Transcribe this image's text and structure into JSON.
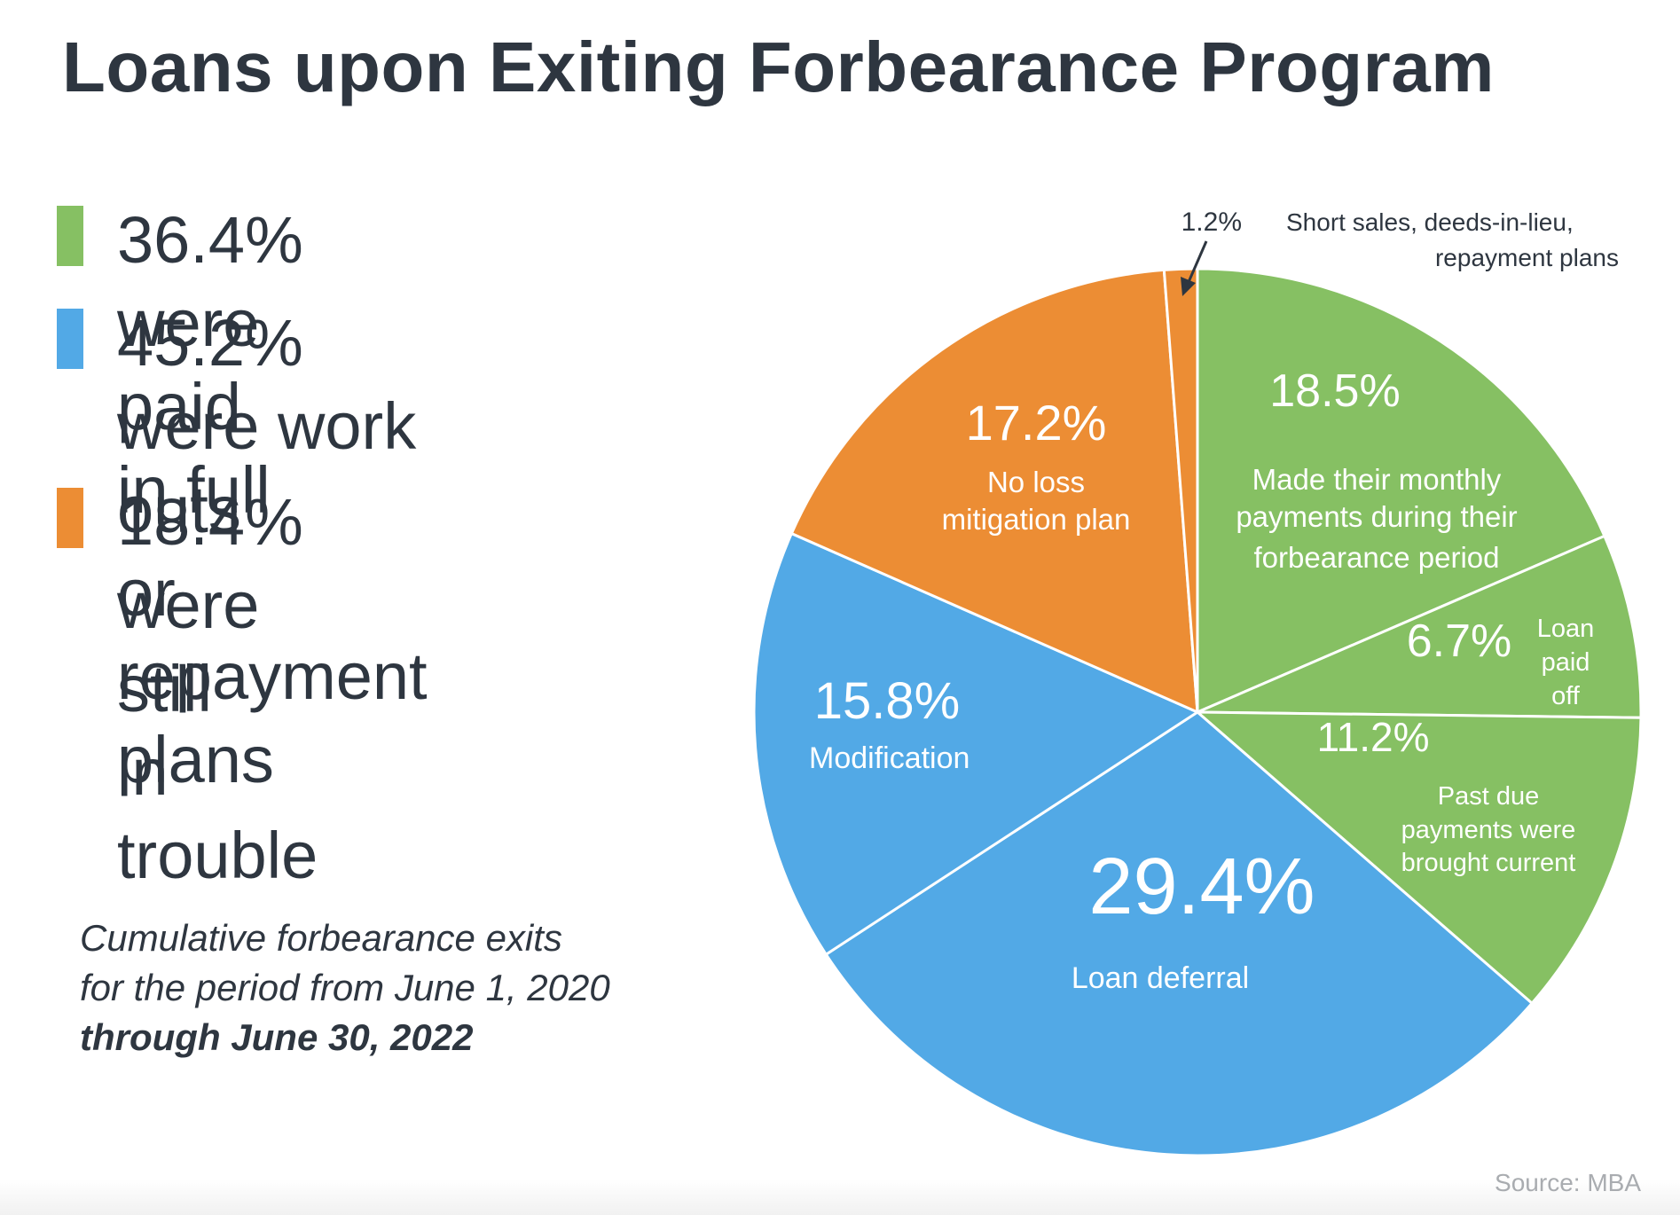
{
  "title": "Loans upon Exiting Forbearance Program",
  "legend": [
    {
      "text": "36.4% were paid in full",
      "color": "#86c063"
    },
    {
      "text": "45.2% were work outs\nor repayment plans",
      "color": "#52a9e6"
    },
    {
      "text": "18.4% were still\n in trouble",
      "color": "#ec8d34"
    }
  ],
  "note": {
    "line1": "Cumulative forbearance exits",
    "line2": "for the period from June 1, 2020",
    "line3": "through June 30, 2022"
  },
  "source": "Source: MBA",
  "chart_data": {
    "type": "pie",
    "title": "Loans upon Exiting Forbearance Program",
    "slices": [
      {
        "value": 18.5,
        "percent_label": "18.5%",
        "description": [
          "Made their monthly",
          "payments during their",
          "forbearance period"
        ],
        "color": "#86c063",
        "group": "paid in full"
      },
      {
        "value": 6.7,
        "percent_label": "6.7%",
        "description": [
          "Loan",
          "paid",
          "off"
        ],
        "color": "#86c063",
        "group": "paid in full"
      },
      {
        "value": 11.2,
        "percent_label": "11.2%",
        "description": [
          "Past due",
          "payments were",
          "brought current"
        ],
        "color": "#86c063",
        "group": "paid in full"
      },
      {
        "value": 29.4,
        "percent_label": "29.4%",
        "description": [
          "Loan deferral"
        ],
        "color": "#52a9e6",
        "group": "work outs or repayment plans"
      },
      {
        "value": 15.8,
        "percent_label": "15.8%",
        "description": [
          "Modification"
        ],
        "color": "#52a9e6",
        "group": "work outs or repayment plans"
      },
      {
        "value": 17.2,
        "percent_label": "17.2%",
        "description": [
          "No loss",
          "mitigation plan"
        ],
        "color": "#ec8d34",
        "group": "still in trouble"
      },
      {
        "value": 1.2,
        "percent_label": "1.2%",
        "description": [
          "Short sales, deeds-in-lieu,",
          "repayment plans"
        ],
        "color": "#ec8d34",
        "group": "still in trouble"
      }
    ]
  }
}
